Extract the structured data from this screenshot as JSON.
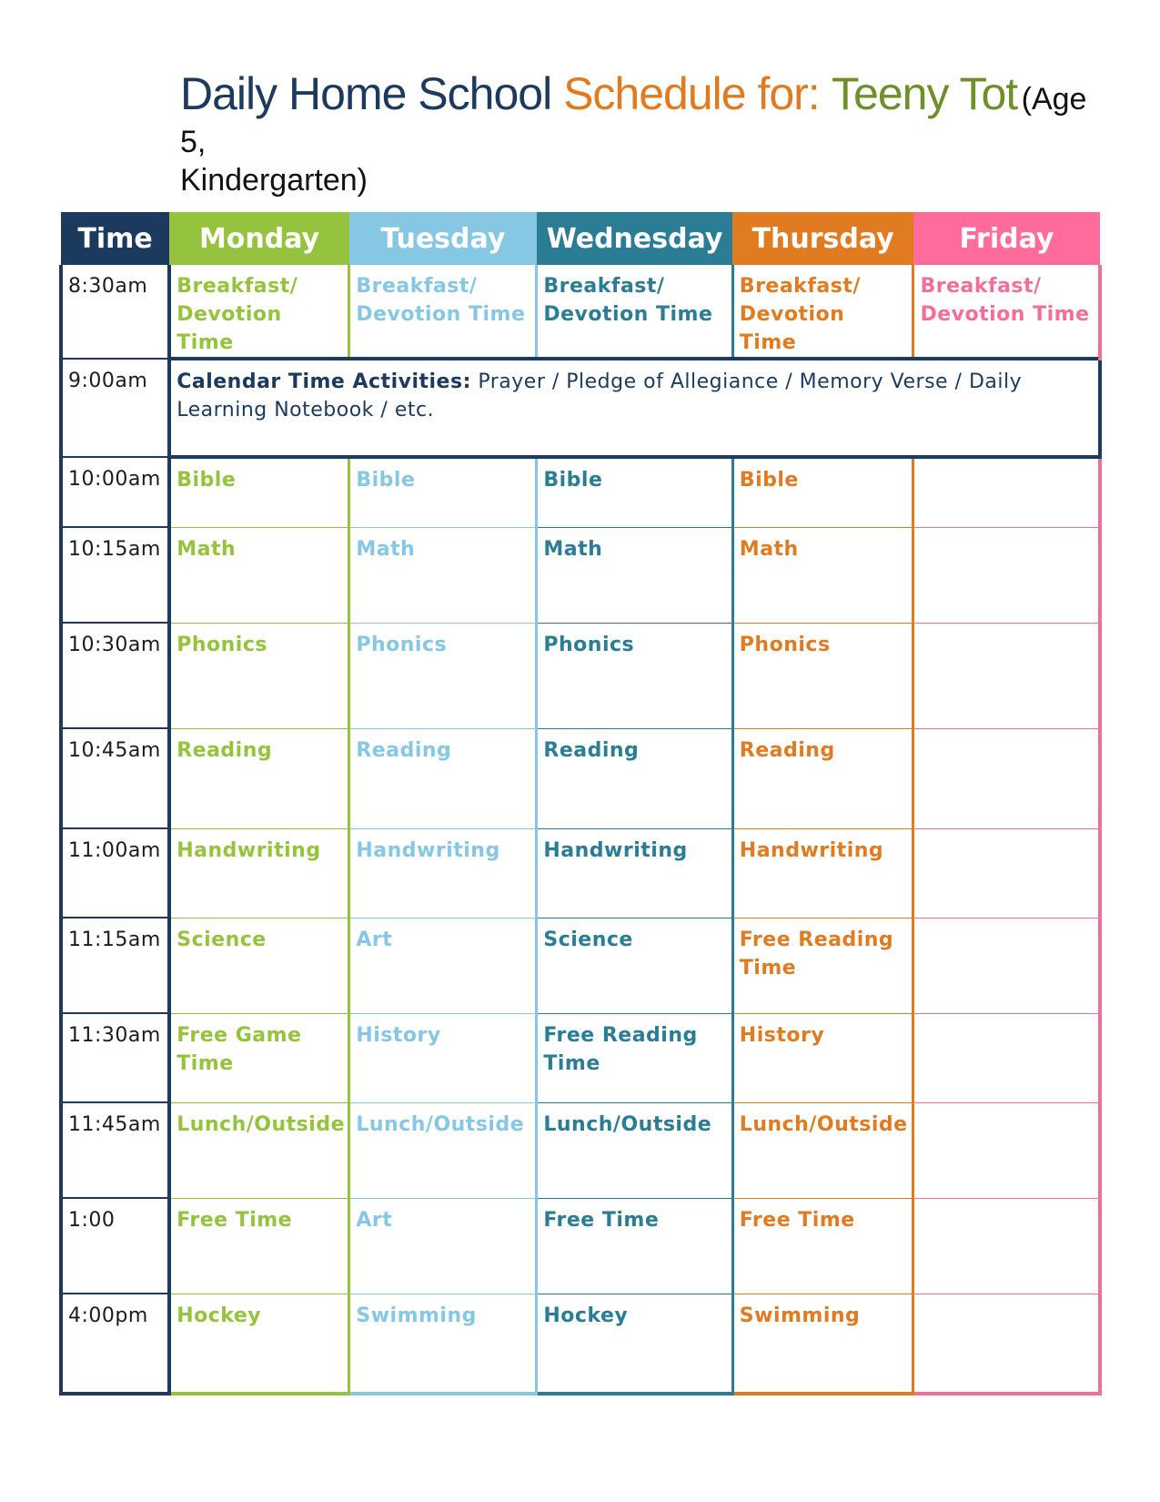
{
  "title": {
    "part1": "Daily Home School ",
    "part2": "Schedule for:",
    "part3": "Teeny Tot",
    "part4": "(Age 5,",
    "part5": "Kindergarten)"
  },
  "headers": [
    "Time",
    "Monday",
    "Tuesday",
    "Wednesday",
    "Thursday",
    "Friday"
  ],
  "header_colors": [
    "#1c3a5e",
    "#96c33d",
    "#86c7e4",
    "#2a7d94",
    "#e07b22",
    "#ff6c9c"
  ],
  "calendar": {
    "time": "9:00am",
    "label": "Calendar Time Activities:",
    "text": " Prayer / Pledge of Allegiance / Memory Verse / Daily Learning Notebook / etc."
  },
  "rows": [
    {
      "time": "8:30am",
      "cells": [
        "Breakfast/ Devotion Time",
        "Breakfast/ Devotion Time",
        "Breakfast/ Devotion Time",
        "Breakfast/ Devotion Time",
        "Breakfast/ Devotion Time"
      ]
    },
    {
      "time": "10:00am",
      "cells": [
        "Bible",
        "Bible",
        "Bible",
        "Bible",
        ""
      ]
    },
    {
      "time": "10:15am",
      "cells": [
        "Math",
        "Math",
        "Math",
        "Math",
        ""
      ]
    },
    {
      "time": "10:30am",
      "cells": [
        "Phonics",
        "Phonics",
        "Phonics",
        "Phonics",
        ""
      ]
    },
    {
      "time": "10:45am",
      "cells": [
        "Reading",
        "Reading",
        "Reading",
        "Reading",
        ""
      ]
    },
    {
      "time": "11:00am",
      "cells": [
        "Handwriting",
        "Handwriting",
        "Handwriting",
        "Handwriting",
        ""
      ]
    },
    {
      "time": "11:15am",
      "cells": [
        "Science",
        "Art",
        "Science",
        "Free Reading Time",
        ""
      ]
    },
    {
      "time": "11:30am",
      "cells": [
        "Free Game Time",
        "History",
        "Free Reading Time",
        "History",
        ""
      ]
    },
    {
      "time": "11:45am",
      "cells": [
        "Lunch/Outside",
        "Lunch/Outside",
        "Lunch/Outside",
        "Lunch/Outside",
        ""
      ]
    },
    {
      "time": "1:00",
      "cells": [
        "Free Time",
        "Art",
        "Free Time",
        "Free Time",
        ""
      ]
    },
    {
      "time": "4:00pm",
      "cells": [
        "Hockey",
        "Swimming",
        "Hockey",
        "Swimming",
        ""
      ]
    }
  ]
}
